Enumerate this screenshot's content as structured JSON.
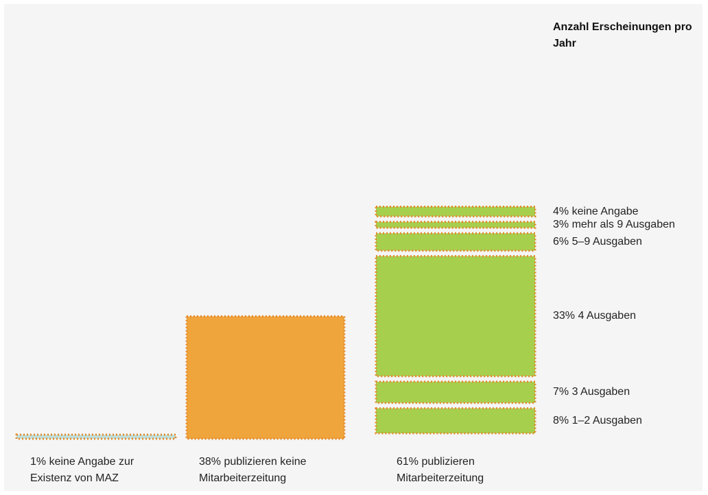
{
  "chart_data": {
    "type": "bar",
    "stacked": true,
    "categories": [
      "1% keine Angabe zur Existenz von MAZ",
      "38% publizieren keine Mitarbeiterzeitung",
      "61% publizieren Mitarbeiterzeitung"
    ],
    "values": [
      1,
      38,
      61
    ],
    "category_labels": [
      {
        "line1": "1% keine Angabe zur",
        "line2": "Existenz von MAZ"
      },
      {
        "line1": "38% publizieren keine",
        "line2": "Mitarbeiterzeitung"
      },
      {
        "line1": "61% publizieren",
        "line2": "Mitarbeiterzeitung"
      }
    ],
    "bar_colors": [
      "#bfe0dc",
      "#efa43c",
      "#a6cf4e"
    ],
    "outline_color": "#e38a2e",
    "segments_title": "Anzahl Erscheinungen pro Jahr",
    "segments": [
      {
        "value": 8,
        "label": "8% 1–2 Ausgaben"
      },
      {
        "value": 7,
        "label": "7% 3 Ausgaben"
      },
      {
        "value": 33,
        "label": "33% 4 Ausgaben"
      },
      {
        "value": 6,
        "label": "6% 5–9 Ausgaben"
      },
      {
        "value": 3,
        "label": "3% mehr als 9 Ausgaben"
      },
      {
        "value": 4,
        "label": "4% keine Angabe"
      }
    ],
    "legend": "right",
    "grid": false
  }
}
